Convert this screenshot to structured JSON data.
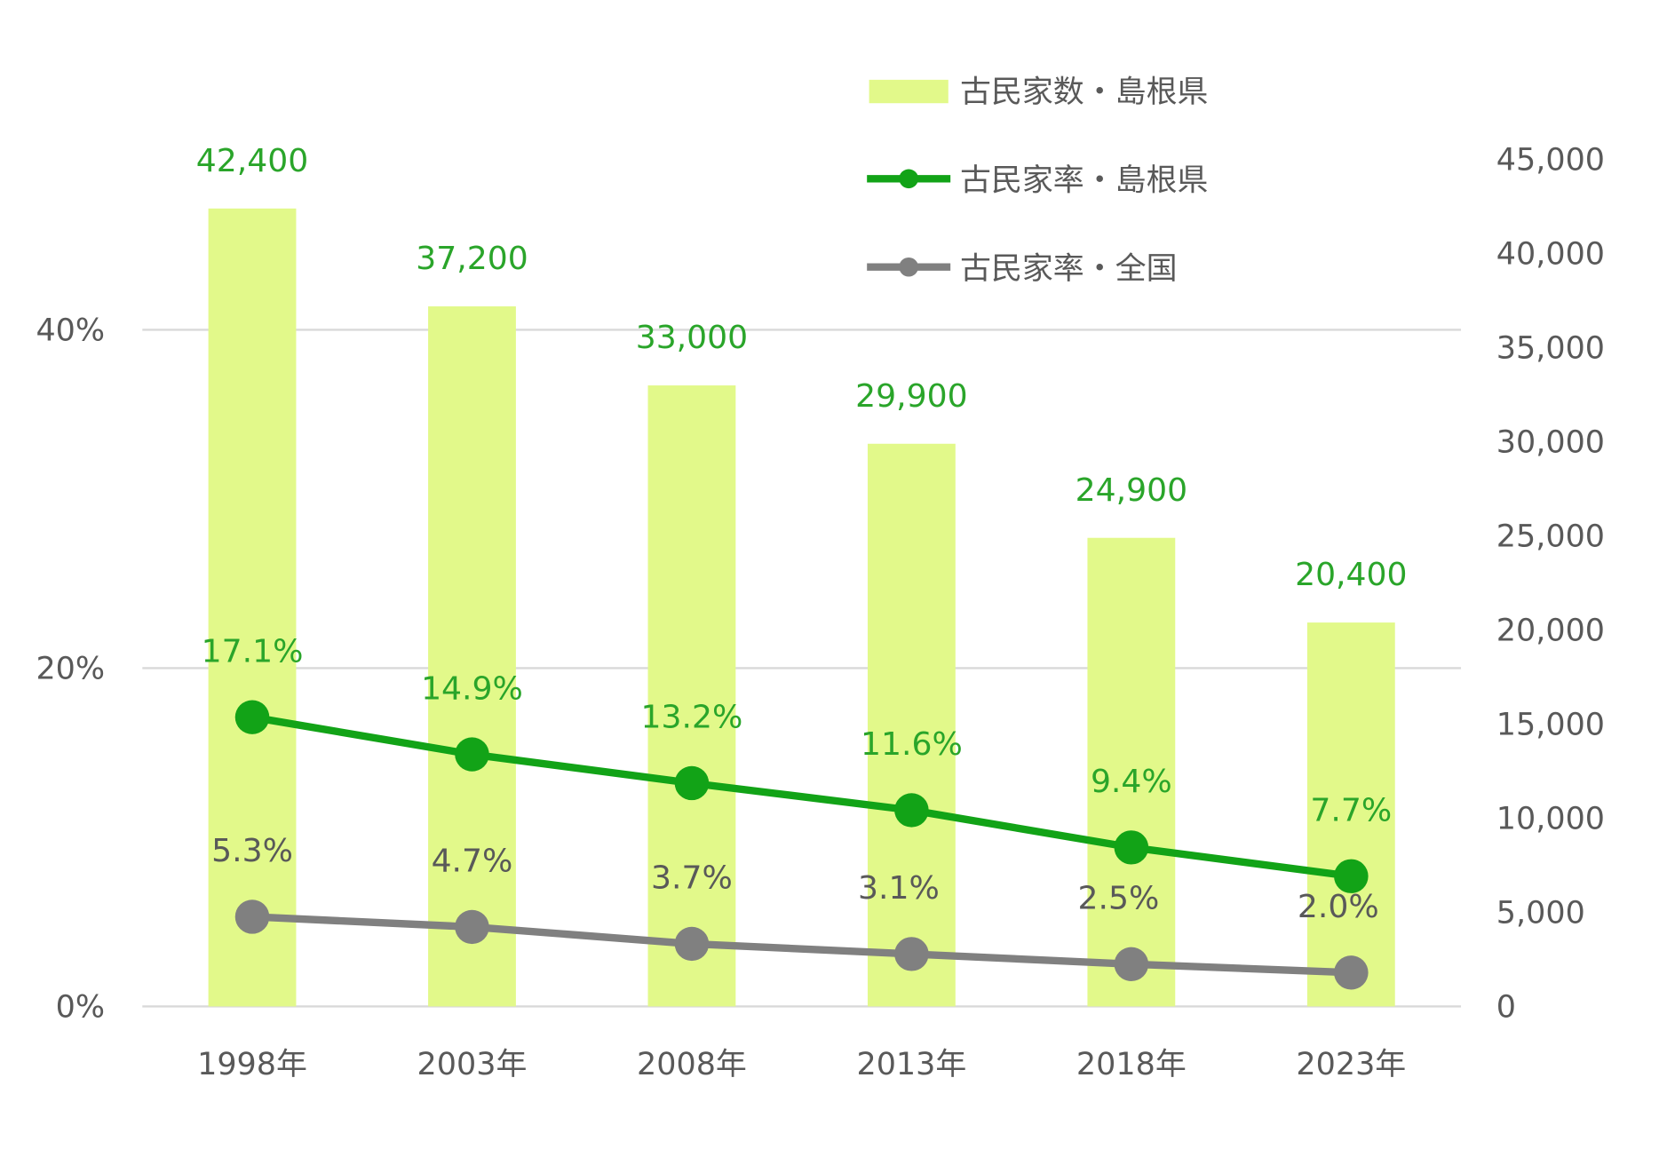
{
  "chart_data": {
    "type": "bar+line",
    "categories": [
      "1998年",
      "2003年",
      "2008年",
      "2013年",
      "2018年",
      "2023年"
    ],
    "series": [
      {
        "name": "古民家数・島根県",
        "type": "bar",
        "axis": "right",
        "color": "#e2f98a",
        "values": [
          42400,
          37200,
          33000,
          29900,
          24900,
          20400
        ],
        "labels": [
          "42,400",
          "37,200",
          "33,000",
          "29,900",
          "24,900",
          "20,400"
        ]
      },
      {
        "name": "古民家率・島根県",
        "type": "line",
        "axis": "left",
        "color": "#12a317",
        "values": [
          17.1,
          14.9,
          13.2,
          11.6,
          9.4,
          7.7
        ],
        "labels": [
          "17.1%",
          "14.9%",
          "13.2%",
          "11.6%",
          "9.4%",
          "7.7%"
        ]
      },
      {
        "name": "古民家率・全国",
        "type": "line",
        "axis": "left",
        "color": "#808080",
        "values": [
          5.3,
          4.7,
          3.7,
          3.1,
          2.5,
          2.0
        ],
        "labels": [
          "5.3%",
          "4.7%",
          "3.7%",
          "3.1%",
          "2.5%",
          "2.0%"
        ]
      }
    ],
    "left_axis": {
      "ylim": [
        0,
        50
      ],
      "ticks": [
        0,
        20,
        40
      ],
      "tick_labels": [
        "0%",
        "20%",
        "40%"
      ]
    },
    "right_axis": {
      "ylim": [
        0,
        45000
      ],
      "ticks": [
        0,
        5000,
        10000,
        15000,
        20000,
        25000,
        30000,
        35000,
        40000,
        45000
      ],
      "tick_labels": [
        "0",
        "5,000",
        "10,000",
        "15,000",
        "20,000",
        "25,000",
        "30,000",
        "35,000",
        "40,000",
        "45,000"
      ]
    },
    "grid": true,
    "legend": "top-right",
    "label_colors": {
      "bar": "#2aa52a",
      "green_line": "#2aa52a",
      "gray_line": "#595959"
    }
  }
}
